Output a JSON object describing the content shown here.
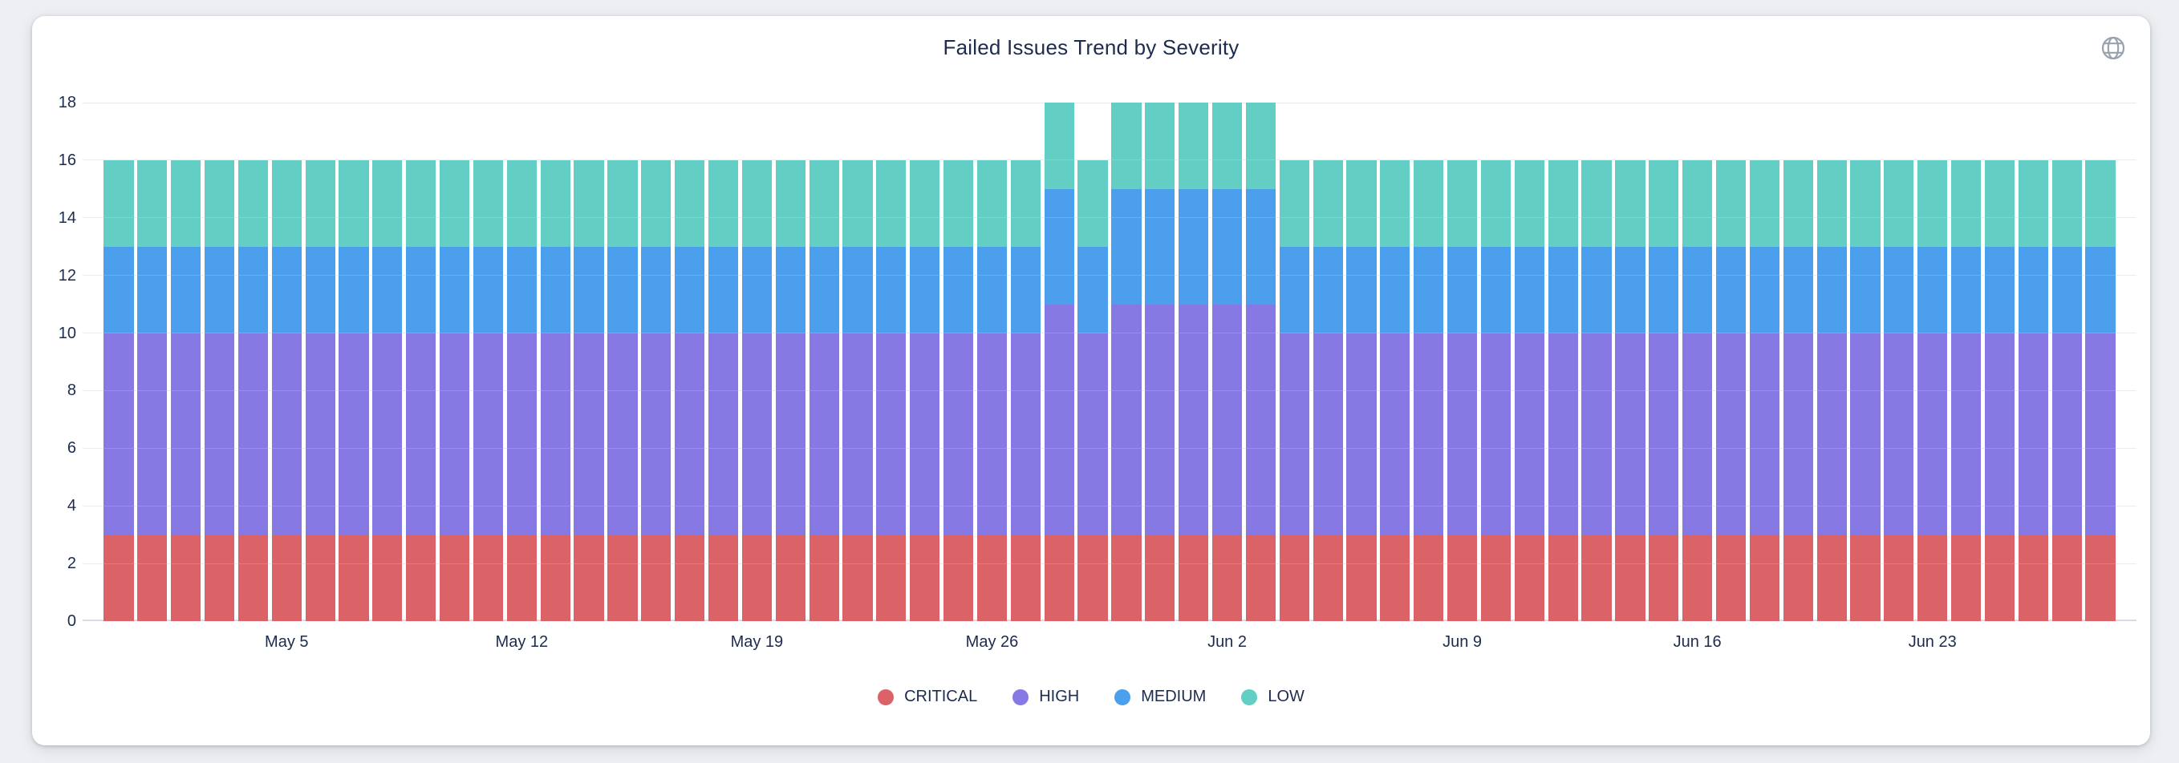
{
  "card": {
    "title": "Failed Issues Trend by Severity"
  },
  "icons": {
    "top_right": "globe-icon"
  },
  "colors": {
    "critical": "#DB6368",
    "high": "#8779E4",
    "medium": "#4C9FED",
    "low": "#63CEC3",
    "text": "#1D2B4E",
    "gridline": "#E7E9ED",
    "axis_line": "#D6DCE7",
    "card_bg": "#FFFFFF",
    "page_bg": "#EDEFF2"
  },
  "chart_data": {
    "type": "bar",
    "stacked": true,
    "title": "Failed Issues Trend by Severity",
    "xlabel": "",
    "ylabel": "",
    "ylim": [
      0,
      18
    ],
    "yticks": [
      0,
      2,
      4,
      6,
      8,
      10,
      12,
      14,
      16,
      18
    ],
    "grid": true,
    "legend_position": "bottom",
    "x": [
      "Apr 30",
      "May 1",
      "May 2",
      "May 3",
      "May 4",
      "May 5",
      "May 6",
      "May 7",
      "May 8",
      "May 9",
      "May 10",
      "May 11",
      "May 12",
      "May 13",
      "May 14",
      "May 15",
      "May 16",
      "May 17",
      "May 18",
      "May 19",
      "May 20",
      "May 21",
      "May 22",
      "May 23",
      "May 24",
      "May 25",
      "May 26",
      "May 27",
      "May 28",
      "May 29",
      "May 30",
      "May 31",
      "Jun 1",
      "Jun 2",
      "Jun 3",
      "Jun 4",
      "Jun 5",
      "Jun 6",
      "Jun 7",
      "Jun 8",
      "Jun 9",
      "Jun 10",
      "Jun 11",
      "Jun 12",
      "Jun 13",
      "Jun 14",
      "Jun 15",
      "Jun 16",
      "Jun 17",
      "Jun 18",
      "Jun 19",
      "Jun 20",
      "Jun 21",
      "Jun 22",
      "Jun 23",
      "Jun 24",
      "Jun 25",
      "Jun 26",
      "Jun 27",
      "Jun 28"
    ],
    "xticks": [
      {
        "label": "May 5",
        "index": 5
      },
      {
        "label": "May 12",
        "index": 12
      },
      {
        "label": "May 19",
        "index": 19
      },
      {
        "label": "May 26",
        "index": 26
      },
      {
        "label": "Jun 2",
        "index": 33
      },
      {
        "label": "Jun 9",
        "index": 40
      },
      {
        "label": "Jun 16",
        "index": 47
      },
      {
        "label": "Jun 23",
        "index": 54
      }
    ],
    "series": [
      {
        "name": "CRITICAL",
        "color": "#DB6368",
        "values": [
          3,
          3,
          3,
          3,
          3,
          3,
          3,
          3,
          3,
          3,
          3,
          3,
          3,
          3,
          3,
          3,
          3,
          3,
          3,
          3,
          3,
          3,
          3,
          3,
          3,
          3,
          3,
          3,
          3,
          3,
          3,
          3,
          3,
          3,
          3,
          3,
          3,
          3,
          3,
          3,
          3,
          3,
          3,
          3,
          3,
          3,
          3,
          3,
          3,
          3,
          3,
          3,
          3,
          3,
          3,
          3,
          3,
          3,
          3,
          3
        ]
      },
      {
        "name": "HIGH",
        "color": "#8779E4",
        "values": [
          7,
          7,
          7,
          7,
          7,
          7,
          7,
          7,
          7,
          7,
          7,
          7,
          7,
          7,
          7,
          7,
          7,
          7,
          7,
          7,
          7,
          7,
          7,
          7,
          7,
          7,
          7,
          7,
          8,
          7,
          8,
          8,
          8,
          8,
          8,
          7,
          7,
          7,
          7,
          7,
          7,
          7,
          7,
          7,
          7,
          7,
          7,
          7,
          7,
          7,
          7,
          7,
          7,
          7,
          7,
          7,
          7,
          7,
          7,
          7
        ]
      },
      {
        "name": "MEDIUM",
        "color": "#4C9FED",
        "values": [
          3,
          3,
          3,
          3,
          3,
          3,
          3,
          3,
          3,
          3,
          3,
          3,
          3,
          3,
          3,
          3,
          3,
          3,
          3,
          3,
          3,
          3,
          3,
          3,
          3,
          3,
          3,
          3,
          4,
          3,
          4,
          4,
          4,
          4,
          4,
          3,
          3,
          3,
          3,
          3,
          3,
          3,
          3,
          3,
          3,
          3,
          3,
          3,
          3,
          3,
          3,
          3,
          3,
          3,
          3,
          3,
          3,
          3,
          3,
          3
        ]
      },
      {
        "name": "LOW",
        "color": "#63CEC3",
        "values": [
          3,
          3,
          3,
          3,
          3,
          3,
          3,
          3,
          3,
          3,
          3,
          3,
          3,
          3,
          3,
          3,
          3,
          3,
          3,
          3,
          3,
          3,
          3,
          3,
          3,
          3,
          3,
          3,
          3,
          3,
          3,
          3,
          3,
          3,
          3,
          3,
          3,
          3,
          3,
          3,
          3,
          3,
          3,
          3,
          3,
          3,
          3,
          3,
          3,
          3,
          3,
          3,
          3,
          3,
          3,
          3,
          3,
          3,
          3,
          3
        ]
      }
    ]
  }
}
